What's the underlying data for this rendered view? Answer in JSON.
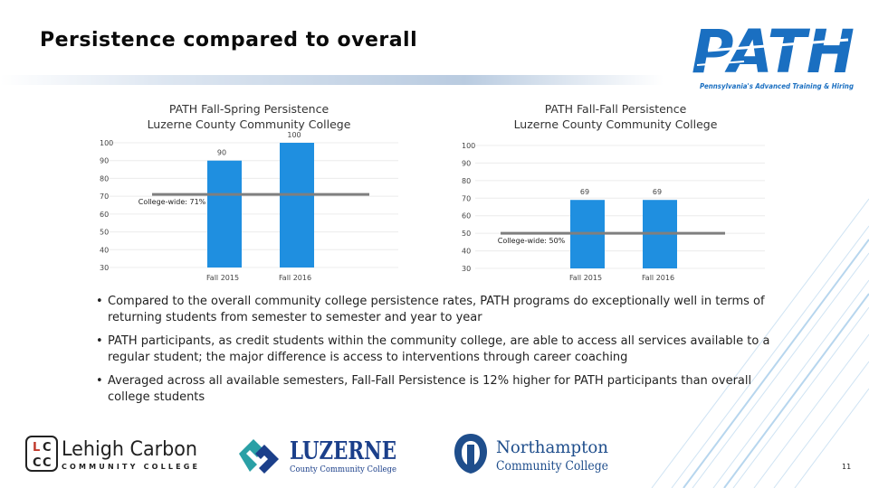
{
  "slide": {
    "title": "Persistence compared to overall",
    "page_number": "11"
  },
  "logos": {
    "path": {
      "word": "PATH",
      "tagline": "Pennsylvania's Advanced Training & Hiring",
      "color": "#1a6fc1"
    },
    "lehigh": {
      "initials": [
        "L",
        "C",
        "C",
        "C"
      ],
      "name": "Lehigh Carbon",
      "subtitle": "COMMUNITY COLLEGE"
    },
    "luzerne": {
      "name": "LUZERNE",
      "subtitle": "County Community College",
      "color": "#1b3f8a",
      "accent": "#2aa0a6"
    },
    "northampton": {
      "name": "Northampton",
      "subtitle": "Community College",
      "color": "#1f4e8c"
    }
  },
  "chart_data": [
    {
      "type": "bar",
      "title": "PATH Fall-Spring Persistence",
      "subtitle": "Luzerne County Community College",
      "categories": [
        "Fall 2015",
        "Fall 2016"
      ],
      "values": [
        90,
        100
      ],
      "ylim": [
        30,
        100
      ],
      "yticks": [
        30,
        40,
        50,
        60,
        70,
        80,
        90,
        100
      ],
      "reference_line": {
        "value": 71,
        "label": "College-wide: 71%"
      },
      "bar_color": "#1f8fe0",
      "line_color": "#7f7f7f",
      "grid": true
    },
    {
      "type": "bar",
      "title": "PATH Fall-Fall Persistence",
      "subtitle": "Luzerne County Community College",
      "categories": [
        "Fall 2015",
        "Fall 2016"
      ],
      "values": [
        69,
        69
      ],
      "ylim": [
        30,
        100
      ],
      "yticks": [
        30,
        40,
        50,
        60,
        70,
        80,
        90,
        100
      ],
      "reference_line": {
        "value": 50,
        "label": "College-wide: 50%"
      },
      "bar_color": "#1f8fe0",
      "line_color": "#7f7f7f",
      "grid": true
    }
  ],
  "bullets": [
    "Compared to the overall community college persistence rates, PATH programs do exceptionally well in terms of returning students from semester to semester and year to year",
    "PATH participants, as credit students within the community college, are able to access all services available to a regular student; the major difference is access to interventions through career coaching",
    "Averaged across all available semesters, Fall-Fall Persistence is 12% higher for PATH participants than overall college students"
  ]
}
